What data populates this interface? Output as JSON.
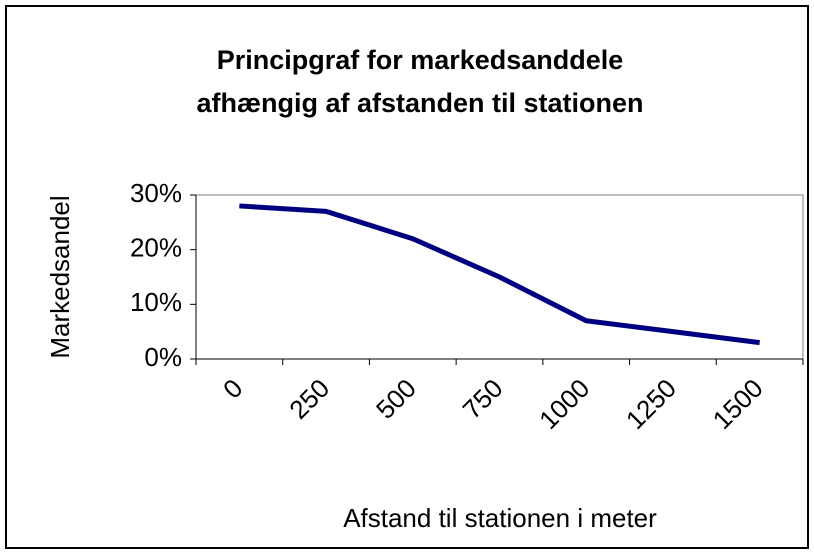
{
  "chart_data": {
    "type": "line",
    "title": [
      "Principgraf for markedsanddele",
      "afhængig af afstanden til stationen"
    ],
    "x_label": "Afstand til stationen i meter",
    "y_label": "Markedsandel",
    "categories": [
      "0",
      "250",
      "500",
      "750",
      "1000",
      "1250",
      "1500"
    ],
    "series": [
      {
        "name": "Markedsandel",
        "color": "#000080",
        "values": [
          28,
          27,
          22,
          15,
          7,
          5,
          3
        ]
      }
    ],
    "ylim": [
      0,
      30
    ],
    "yticks": [
      {
        "value": 0,
        "label": "0%"
      },
      {
        "value": 10,
        "label": "10%"
      },
      {
        "value": 20,
        "label": "20%"
      },
      {
        "value": 30,
        "label": "30%"
      }
    ],
    "grid": false
  }
}
